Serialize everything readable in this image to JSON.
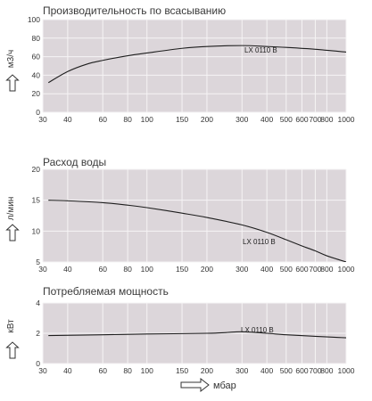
{
  "colors": {
    "plot_bg": "#dcd6da",
    "grid": "#f6f4f5",
    "curve": "#1e1e1e",
    "text": "#333333"
  },
  "x_axis": {
    "label": "мбар",
    "arrow_icon": "right-arrow-icon",
    "scale": "log",
    "xlim": [
      30,
      1000
    ],
    "ticks": [
      30,
      40,
      60,
      80,
      100,
      150,
      200,
      300,
      400,
      500,
      600,
      700,
      800,
      1000
    ],
    "tick_labels": [
      "30",
      "40",
      "60",
      "80",
      "100",
      "150",
      "200",
      "300",
      "400",
      "500",
      "600",
      "700",
      "800",
      "1000"
    ]
  },
  "chart_data": [
    {
      "type": "line",
      "title": "Производительность по всасыванию",
      "ylabel": "м3/ч",
      "ylim": [
        0,
        100
      ],
      "yticks": [
        0,
        20,
        40,
        60,
        80,
        100
      ],
      "ytick_labels": [
        "0",
        "20",
        "40",
        "60",
        "80",
        "100"
      ],
      "grid": true,
      "series": [
        {
          "name": "LX 0110 B",
          "x": [
            32,
            40,
            50,
            60,
            80,
            100,
            150,
            200,
            300,
            400,
            500,
            700,
            1000
          ],
          "y": [
            32,
            44,
            52,
            56,
            61,
            64,
            69,
            71,
            72,
            71,
            70,
            68,
            65
          ]
        }
      ]
    },
    {
      "type": "line",
      "title": "Расход воды",
      "ylabel": "л/мин",
      "ylim": [
        5,
        20
      ],
      "yticks": [
        5,
        10,
        15,
        20
      ],
      "ytick_labels": [
        "5",
        "10",
        "15",
        "20"
      ],
      "grid": true,
      "series": [
        {
          "name": "LX 0110 B",
          "x": [
            32,
            40,
            60,
            80,
            100,
            150,
            200,
            300,
            400,
            500,
            600,
            700,
            800,
            1000
          ],
          "y": [
            15,
            14.9,
            14.6,
            14.2,
            13.8,
            12.9,
            12.2,
            11,
            9.8,
            8.6,
            7.6,
            6.8,
            6,
            5
          ]
        }
      ]
    },
    {
      "type": "line",
      "title": "Потребляемая мощность",
      "ylabel": "кВт",
      "ylim": [
        0,
        4
      ],
      "yticks": [
        0,
        2,
        4
      ],
      "ytick_labels": [
        "0",
        "2",
        "4"
      ],
      "grid": true,
      "series": [
        {
          "name": "LX 0110 B",
          "x": [
            32,
            60,
            100,
            200,
            250,
            300,
            400,
            500,
            700,
            1000
          ],
          "y": [
            1.85,
            1.9,
            1.95,
            2.0,
            2.05,
            2.1,
            2.0,
            1.9,
            1.8,
            1.7
          ]
        }
      ]
    }
  ]
}
